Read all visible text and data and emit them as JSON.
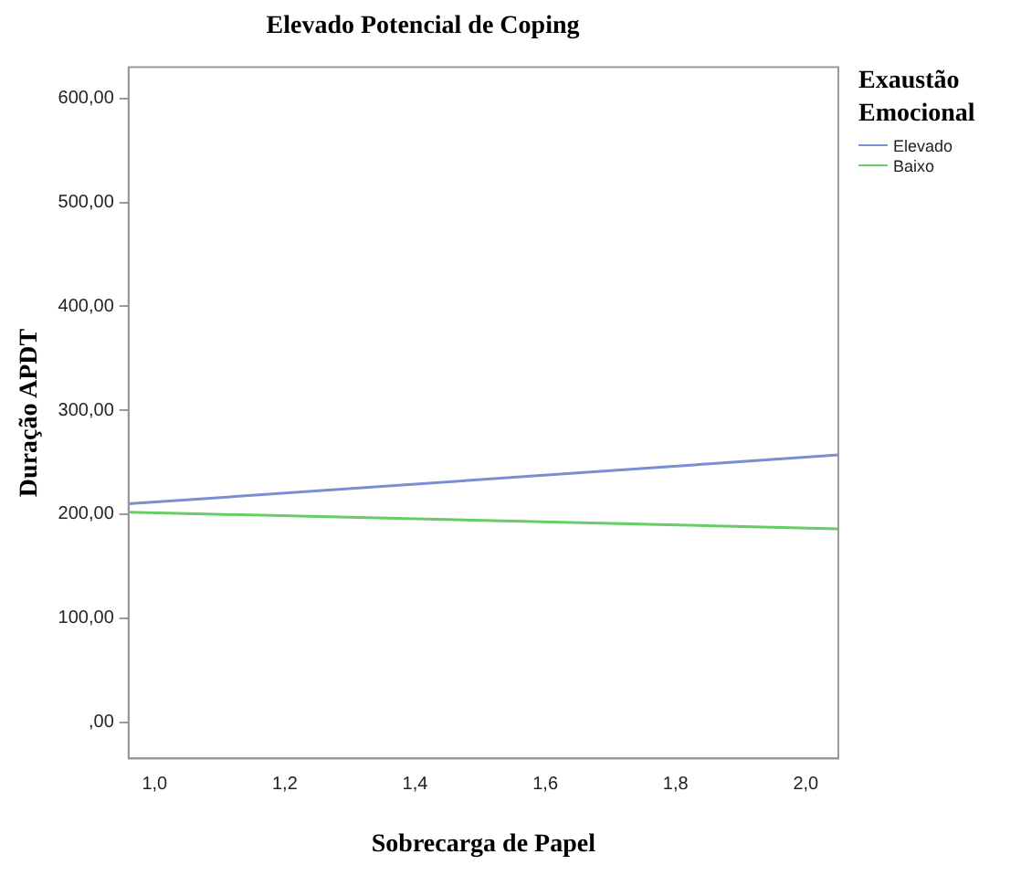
{
  "chart_data": {
    "type": "line",
    "title": "Elevado Potencial de Coping",
    "xlabel": "Sobrecarga de Papel",
    "ylabel": "Duração APDT",
    "legend_title": "Exaustão Emocional",
    "x": [
      0.96,
      2.05
    ],
    "series": [
      {
        "name": "Elevado",
        "color": "#7b8fd0",
        "values": [
          210,
          257
        ]
      },
      {
        "name": "Baixo",
        "color": "#66cc66",
        "values": [
          202,
          186
        ]
      }
    ],
    "xlim": [
      0.96,
      2.05
    ],
    "xticks": [
      {
        "value": 1,
        "label": "1,0"
      },
      {
        "value": 1.2,
        "label": "1,2"
      },
      {
        "value": 1.4,
        "label": "1,4"
      },
      {
        "value": 1.6,
        "label": "1,6"
      },
      {
        "value": 1.8,
        "label": "1,8"
      },
      {
        "value": 2,
        "label": "2,0"
      }
    ],
    "ylim": [
      -35,
      630
    ],
    "yticks": [
      {
        "value": 0,
        "label": ",00"
      },
      {
        "value": 100,
        "label": "100,00"
      },
      {
        "value": 200,
        "label": "200,00"
      },
      {
        "value": 300,
        "label": "300,00"
      },
      {
        "value": 400,
        "label": "400,00"
      },
      {
        "value": 500,
        "label": "500,00"
      },
      {
        "value": 600,
        "label": "600,00"
      }
    ],
    "grid": false,
    "legend": "top right",
    "marker": "none",
    "line_style": "solid"
  }
}
